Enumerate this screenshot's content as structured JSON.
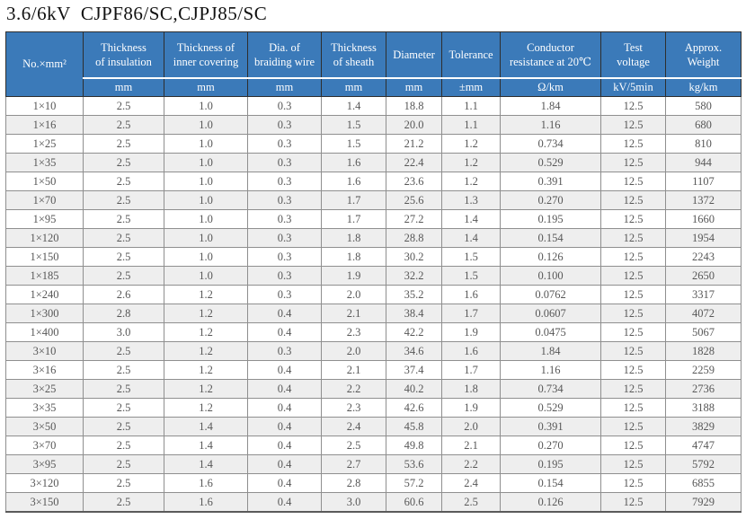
{
  "title": "3.6/6kV  CJPF86/SC,CJPJ85/SC",
  "colors": {
    "header_bg": "#3b7ab9",
    "header_text": "#ffffff",
    "stripe": "#eeeeee",
    "body_text": "#575757"
  },
  "table": {
    "columns": [
      {
        "label": "No.×mm²"
      },
      {
        "label": "Thickness\nof insulation"
      },
      {
        "label": "Thickness of\ninner covering"
      },
      {
        "label": "Dia. of\nbraiding wire"
      },
      {
        "label": "Thickness\nof sheath"
      },
      {
        "label": "Diameter"
      },
      {
        "label": "Tolerance"
      },
      {
        "label": "Conductor\nresistance at 20℃"
      },
      {
        "label": "Test\nvoltage"
      },
      {
        "label": "Approx.\nWeight"
      }
    ],
    "units": [
      "mm",
      "mm",
      "mm",
      "mm",
      "mm",
      "±mm",
      "Ω/km",
      "kV/5min",
      "kg/km"
    ],
    "rows": [
      [
        "1×10",
        "2.5",
        "1.0",
        "0.3",
        "1.4",
        "18.8",
        "1.1",
        "1.84",
        "12.5",
        "580"
      ],
      [
        "1×16",
        "2.5",
        "1.0",
        "0.3",
        "1.5",
        "20.0",
        "1.1",
        "1.16",
        "12.5",
        "680"
      ],
      [
        "1×25",
        "2.5",
        "1.0",
        "0.3",
        "1.5",
        "21.2",
        "1.2",
        "0.734",
        "12.5",
        "810"
      ],
      [
        "1×35",
        "2.5",
        "1.0",
        "0.3",
        "1.6",
        "22.4",
        "1.2",
        "0.529",
        "12.5",
        "944"
      ],
      [
        "1×50",
        "2.5",
        "1.0",
        "0.3",
        "1.6",
        "23.6",
        "1.2",
        "0.391",
        "12.5",
        "1107"
      ],
      [
        "1×70",
        "2.5",
        "1.0",
        "0.3",
        "1.7",
        "25.6",
        "1.3",
        "0.270",
        "12.5",
        "1372"
      ],
      [
        "1×95",
        "2.5",
        "1.0",
        "0.3",
        "1.7",
        "27.2",
        "1.4",
        "0.195",
        "12.5",
        "1660"
      ],
      [
        "1×120",
        "2.5",
        "1.0",
        "0.3",
        "1.8",
        "28.8",
        "1.4",
        "0.154",
        "12.5",
        "1954"
      ],
      [
        "1×150",
        "2.5",
        "1.0",
        "0.3",
        "1.8",
        "30.2",
        "1.5",
        "0.126",
        "12.5",
        "2243"
      ],
      [
        "1×185",
        "2.5",
        "1.0",
        "0.3",
        "1.9",
        "32.2",
        "1.5",
        "0.100",
        "12.5",
        "2650"
      ],
      [
        "1×240",
        "2.6",
        "1.2",
        "0.3",
        "2.0",
        "35.2",
        "1.6",
        "0.0762",
        "12.5",
        "3317"
      ],
      [
        "1×300",
        "2.8",
        "1.2",
        "0.4",
        "2.1",
        "38.4",
        "1.7",
        "0.0607",
        "12.5",
        "4072"
      ],
      [
        "1×400",
        "3.0",
        "1.2",
        "0.4",
        "2.3",
        "42.2",
        "1.9",
        "0.0475",
        "12.5",
        "5067"
      ],
      [
        "3×10",
        "2.5",
        "1.2",
        "0.3",
        "2.0",
        "34.6",
        "1.6",
        "1.84",
        "12.5",
        "1828"
      ],
      [
        "3×16",
        "2.5",
        "1.2",
        "0.4",
        "2.1",
        "37.4",
        "1.7",
        "1.16",
        "12.5",
        "2259"
      ],
      [
        "3×25",
        "2.5",
        "1.2",
        "0.4",
        "2.2",
        "40.2",
        "1.8",
        "0.734",
        "12.5",
        "2736"
      ],
      [
        "3×35",
        "2.5",
        "1.2",
        "0.4",
        "2.3",
        "42.6",
        "1.9",
        "0.529",
        "12.5",
        "3188"
      ],
      [
        "3×50",
        "2.5",
        "1.4",
        "0.4",
        "2.4",
        "45.8",
        "2.0",
        "0.391",
        "12.5",
        "3829"
      ],
      [
        "3×70",
        "2.5",
        "1.4",
        "0.4",
        "2.5",
        "49.8",
        "2.1",
        "0.270",
        "12.5",
        "4747"
      ],
      [
        "3×95",
        "2.5",
        "1.4",
        "0.4",
        "2.7",
        "53.6",
        "2.2",
        "0.195",
        "12.5",
        "5792"
      ],
      [
        "3×120",
        "2.5",
        "1.6",
        "0.4",
        "2.8",
        "57.2",
        "2.4",
        "0.154",
        "12.5",
        "6855"
      ],
      [
        "3×150",
        "2.5",
        "1.6",
        "0.4",
        "3.0",
        "60.6",
        "2.5",
        "0.126",
        "12.5",
        "7929"
      ]
    ]
  }
}
